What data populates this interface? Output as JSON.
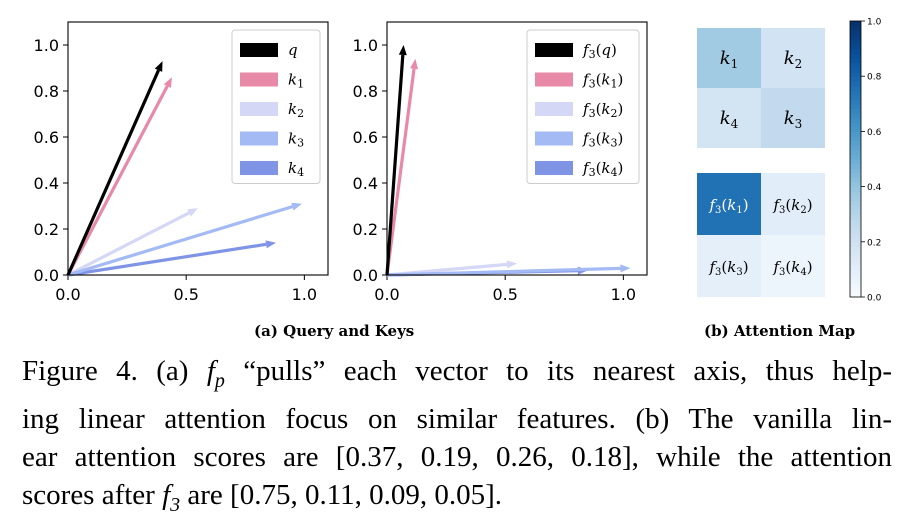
{
  "chart_data": [
    {
      "type": "vector",
      "panel": "left",
      "xlim": [
        0,
        1.1
      ],
      "ylim": [
        0,
        1.1
      ],
      "xticks": [
        "0.0",
        "0.5",
        "1.0"
      ],
      "yticks": [
        "0.0",
        "0.2",
        "0.4",
        "0.6",
        "0.8",
        "1.0"
      ],
      "series": [
        {
          "name": "q",
          "x": 0.4,
          "y": 0.93,
          "color": "#000000"
        },
        {
          "name": "k1",
          "x": 0.44,
          "y": 0.86,
          "color": "#e889a8"
        },
        {
          "name": "k2",
          "x": 0.55,
          "y": 0.29,
          "color": "#d4d7f6"
        },
        {
          "name": "k3",
          "x": 0.99,
          "y": 0.31,
          "color": "#a4baf5"
        },
        {
          "name": "k4",
          "x": 0.88,
          "y": 0.14,
          "color": "#8094e6"
        }
      ],
      "legend_labels": [
        "q",
        "k",
        "k",
        "k",
        "k"
      ],
      "legend_subs": [
        "",
        "1",
        "2",
        "3",
        "4"
      ]
    },
    {
      "type": "vector",
      "panel": "middle",
      "xlim": [
        0,
        1.1
      ],
      "ylim": [
        0,
        1.1
      ],
      "xticks": [
        "0.0",
        "0.5",
        "1.0"
      ],
      "yticks": [
        "0.0",
        "0.2",
        "0.4",
        "0.6",
        "0.8",
        "1.0"
      ],
      "series": [
        {
          "name": "f3(q)",
          "x": 0.07,
          "y": 1.0,
          "color": "#000000"
        },
        {
          "name": "f3(k1)",
          "x": 0.12,
          "y": 0.94,
          "color": "#e889a8"
        },
        {
          "name": "f3(k2)",
          "x": 0.55,
          "y": 0.05,
          "color": "#d4d7f6"
        },
        {
          "name": "f3(k3)",
          "x": 1.03,
          "y": 0.03,
          "color": "#a4baf5"
        },
        {
          "name": "f3(k4)",
          "x": 0.85,
          "y": 0.02,
          "color": "#8094e6"
        }
      ],
      "legend_labels": [
        "q",
        "k",
        "k",
        "k",
        "k"
      ],
      "legend_subs": [
        "",
        "1",
        "2",
        "3",
        "4"
      ]
    },
    {
      "type": "heatmap",
      "panel": "right-top",
      "cells": [
        {
          "label": "k",
          "sub": "1",
          "value": 0.37
        },
        {
          "label": "k",
          "sub": "2",
          "value": 0.19
        },
        {
          "label": "k",
          "sub": "4",
          "value": 0.18
        },
        {
          "label": "k",
          "sub": "3",
          "value": 0.26
        }
      ]
    },
    {
      "type": "heatmap",
      "panel": "right-bottom",
      "cells": [
        {
          "label": "k",
          "sub": "1",
          "value": 0.75
        },
        {
          "label": "k",
          "sub": "2",
          "value": 0.11
        },
        {
          "label": "k",
          "sub": "3",
          "value": 0.09
        },
        {
          "label": "k",
          "sub": "4",
          "value": 0.05
        }
      ]
    },
    {
      "type": "colorbar",
      "range": [
        0,
        1
      ],
      "ticks": [
        "0.0",
        "0.2",
        "0.4",
        "0.6",
        "0.8",
        "1.0"
      ]
    }
  ],
  "subcaptions": {
    "a": "(a) Query and Keys",
    "b": "(b) Attention Map"
  },
  "caption": {
    "lines": [
      [
        "Figure 4. (a) ",
        {
          "math": "f"
        },
        {
          "sub": "p"
        },
        " “pulls” each vector to its nearest axis, thus help-"
      ],
      [
        "ing linear attention focus on similar features.  (b) The vanilla lin-"
      ],
      [
        "ear attention scores are [0.37, 0.19, 0.26, 0.18], while the attention"
      ],
      [
        "scores after ",
        {
          "math": "f"
        },
        {
          "sub": "3"
        },
        " are [0.75, 0.11, 0.09, 0.05]."
      ]
    ]
  }
}
